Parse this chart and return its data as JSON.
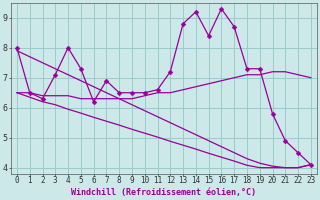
{
  "xlabel": "Windchill (Refroidissement éolien,°C)",
  "x": [
    0,
    1,
    2,
    3,
    4,
    5,
    6,
    7,
    8,
    9,
    10,
    11,
    12,
    13,
    14,
    15,
    16,
    17,
    18,
    19,
    20,
    21,
    22,
    23
  ],
  "y_main": [
    8.0,
    6.5,
    6.3,
    7.1,
    8.0,
    7.3,
    6.2,
    6.9,
    6.5,
    6.5,
    6.5,
    6.6,
    7.2,
    8.8,
    9.2,
    8.4,
    9.3,
    8.7,
    7.3,
    7.3,
    5.8,
    4.9,
    4.5,
    4.1
  ],
  "y_smooth1": [
    6.5,
    6.5,
    6.4,
    6.4,
    6.4,
    6.3,
    6.3,
    6.3,
    6.3,
    6.3,
    6.4,
    6.5,
    6.5,
    6.6,
    6.7,
    6.8,
    6.9,
    7.0,
    7.1,
    7.1,
    7.2,
    7.2,
    7.1,
    7.0
  ],
  "y_smooth2": [
    6.5,
    6.35,
    6.2,
    6.1,
    5.95,
    5.82,
    5.68,
    5.55,
    5.42,
    5.28,
    5.15,
    5.02,
    4.88,
    4.75,
    4.62,
    4.48,
    4.35,
    4.22,
    4.08,
    4.0,
    4.0,
    4.0,
    4.0,
    4.1
  ],
  "y_smooth3": [
    7.9,
    7.7,
    7.5,
    7.3,
    7.1,
    6.9,
    6.7,
    6.5,
    6.3,
    6.1,
    5.9,
    5.7,
    5.5,
    5.3,
    5.1,
    4.9,
    4.7,
    4.5,
    4.3,
    4.15,
    4.05,
    4.0,
    4.0,
    4.1
  ],
  "line_color": "#990099",
  "bg_color": "#cce8e8",
  "grid_color": "#99cccc",
  "axis_bg": "#cce8e8",
  "ylim_min": 3.8,
  "ylim_max": 9.5,
  "yticks": [
    4,
    5,
    6,
    7,
    8,
    9
  ],
  "xticks": [
    0,
    1,
    2,
    3,
    4,
    5,
    6,
    7,
    8,
    9,
    10,
    11,
    12,
    13,
    14,
    15,
    16,
    17,
    18,
    19,
    20,
    21,
    22,
    23
  ],
  "tick_fontsize": 5.5,
  "label_fontsize": 6.0,
  "marker_size": 2.5
}
